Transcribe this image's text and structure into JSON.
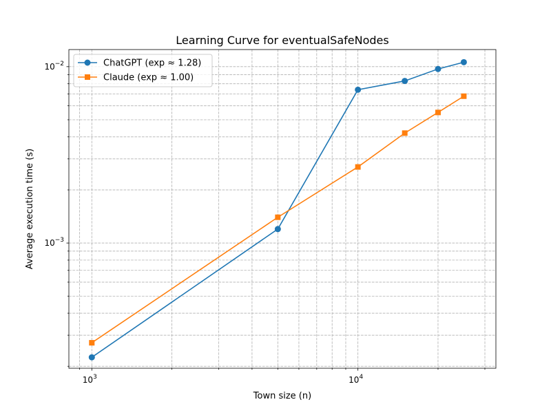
{
  "chart_data": {
    "type": "line",
    "title": "Learning Curve for eventualSafeNodes",
    "xlabel": "Town size (n)",
    "ylabel": "Average execution time (s)",
    "xscale": "log",
    "yscale": "log",
    "xlim": [
      820,
      33000
    ],
    "ylim": [
      0.000195,
      0.0125
    ],
    "grid": true,
    "legend_loc": "upper left",
    "x_ticks": [
      {
        "value": 1000,
        "base": "10",
        "exp": "3"
      },
      {
        "value": 10000,
        "base": "10",
        "exp": "4"
      }
    ],
    "y_ticks": [
      {
        "value": 0.001,
        "base": "10",
        "exp": "−3"
      },
      {
        "value": 0.01,
        "base": "10",
        "exp": "−2"
      }
    ],
    "series": [
      {
        "name": "ChatGPT (exp ≈ 1.28)",
        "color": "#1f77b4",
        "marker": "circle",
        "x": [
          1000,
          5000,
          10000,
          15000,
          20000,
          25000
        ],
        "y": [
          0.000225,
          0.0012,
          0.0074,
          0.0083,
          0.0097,
          0.0106
        ]
      },
      {
        "name": "Claude (exp ≈ 1.00)",
        "color": "#ff7f0e",
        "marker": "square",
        "x": [
          1000,
          5000,
          10000,
          15000,
          20000,
          25000
        ],
        "y": [
          0.000272,
          0.0014,
          0.0027,
          0.0042,
          0.0055,
          0.0068
        ]
      }
    ]
  }
}
